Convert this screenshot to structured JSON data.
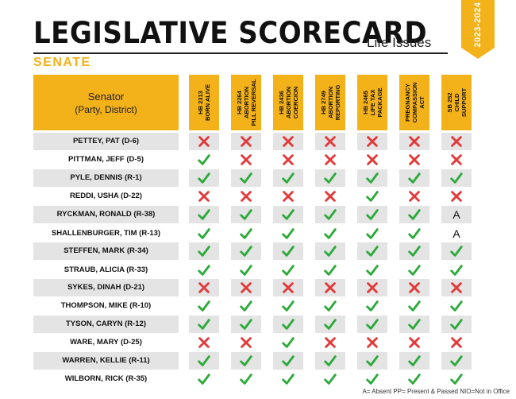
{
  "header": {
    "title": "LEGISLATIVE SCORECARD",
    "subtitle": "Life Issues",
    "year_banner": "2023-2024"
  },
  "chamber": "SENATE",
  "table": {
    "senator_header": "Senator",
    "senator_subheader": "(Party, District)",
    "bills": [
      "HB 2313\nBORN ALIVE",
      "HB 2264\nABORTION\nPILL REVERSAL",
      "HB 2436\nABORTION\nCOERCION",
      "HB 2749\nABORTION\nREPORTING",
      "HB 2465\nLIFE TAX\nPACKAGE",
      "PREGNANCY\nCOMPASSION\nACT",
      "SB 252\nCHILD\nSUPPORT"
    ],
    "rows": [
      {
        "name": "PETTEY, PAT (D-6)",
        "votes": [
          "x",
          "x",
          "x",
          "x",
          "x",
          "x",
          "x"
        ]
      },
      {
        "name": "PITTMAN, JEFF (D-5)",
        "votes": [
          "check",
          "x",
          "x",
          "x",
          "x",
          "x",
          "x"
        ]
      },
      {
        "name": "PYLE, DENNIS (R-1)",
        "votes": [
          "check",
          "check",
          "check",
          "check",
          "check",
          "check",
          "check"
        ]
      },
      {
        "name": "REDDI, USHA (D-22)",
        "votes": [
          "x",
          "x",
          "x",
          "x",
          "check",
          "x",
          "x"
        ]
      },
      {
        "name": "RYCKMAN, RONALD (R-38)",
        "votes": [
          "check",
          "check",
          "check",
          "check",
          "check",
          "check",
          "A"
        ]
      },
      {
        "name": "SHALLENBURGER, TIM (R-13)",
        "votes": [
          "check",
          "check",
          "check",
          "check",
          "check",
          "check",
          "A"
        ]
      },
      {
        "name": "STEFFEN, MARK (R-34)",
        "votes": [
          "check",
          "check",
          "check",
          "check",
          "check",
          "check",
          "check"
        ]
      },
      {
        "name": "STRAUB, ALICIA (R-33)",
        "votes": [
          "check",
          "check",
          "check",
          "check",
          "check",
          "check",
          "check"
        ]
      },
      {
        "name": "SYKES, DINAH (D-21)",
        "votes": [
          "x",
          "x",
          "x",
          "x",
          "x",
          "x",
          "x"
        ]
      },
      {
        "name": "THOMPSON, MIKE (R-10)",
        "votes": [
          "check",
          "check",
          "check",
          "check",
          "check",
          "check",
          "check"
        ]
      },
      {
        "name": "TYSON, CARYN (R-12)",
        "votes": [
          "check",
          "check",
          "check",
          "check",
          "check",
          "check",
          "check"
        ]
      },
      {
        "name": "WARE, MARY (D-25)",
        "votes": [
          "x",
          "x",
          "check",
          "x",
          "x",
          "x",
          "x"
        ]
      },
      {
        "name": "WARREN, KELLIE (R-11)",
        "votes": [
          "check",
          "check",
          "check",
          "check",
          "check",
          "check",
          "check"
        ]
      },
      {
        "name": "WILBORN, RICK (R-35)",
        "votes": [
          "check",
          "check",
          "check",
          "check",
          "check",
          "check",
          "check"
        ]
      }
    ]
  },
  "legend": "A= Absent PP= Present & Passed NIO=Not in Office",
  "colors": {
    "accent": "#f3b11a",
    "check": "#2eaa3c",
    "x": "#e23a3a",
    "shade": "#e4e4e4"
  }
}
